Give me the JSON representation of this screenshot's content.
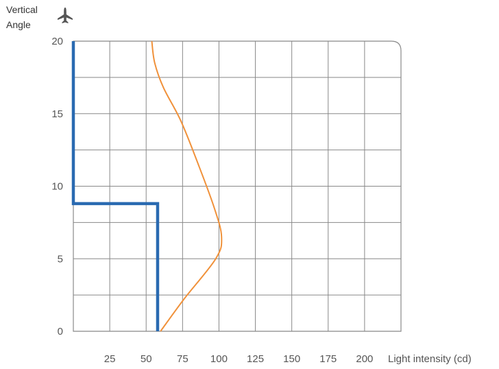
{
  "chart_data": {
    "type": "line",
    "ylabel_lines": [
      "Vertical",
      "Angle"
    ],
    "xlabel": "Light intensity (cd)",
    "x_ticks": [
      "25",
      "50",
      "75",
      "100",
      "125",
      "150",
      "175",
      "200"
    ],
    "y_ticks": [
      "0",
      "5",
      "10",
      "15",
      "20"
    ],
    "ylim": [
      0,
      20
    ],
    "grid": true,
    "series": [
      {
        "color": "#2a6ab1",
        "style": "step",
        "points": [
          [
            0,
            20
          ],
          [
            0,
            8.8
          ],
          [
            58,
            8.8
          ],
          [
            58,
            0
          ]
        ]
      },
      {
        "color": "#f0913a",
        "style": "smooth",
        "points": [
          [
            60,
            0
          ],
          [
            76,
            2.2
          ],
          [
            98,
            5
          ],
          [
            102,
            6.5
          ],
          [
            97,
            8.5
          ],
          [
            86,
            11.5
          ],
          [
            74,
            14.5
          ],
          [
            62,
            16.8
          ],
          [
            56,
            18.5
          ],
          [
            54,
            20
          ]
        ]
      }
    ]
  },
  "icons": {
    "axis_icon": "airplane-icon"
  },
  "colors": {
    "grid": "#888888",
    "axis_text": "#555555"
  }
}
